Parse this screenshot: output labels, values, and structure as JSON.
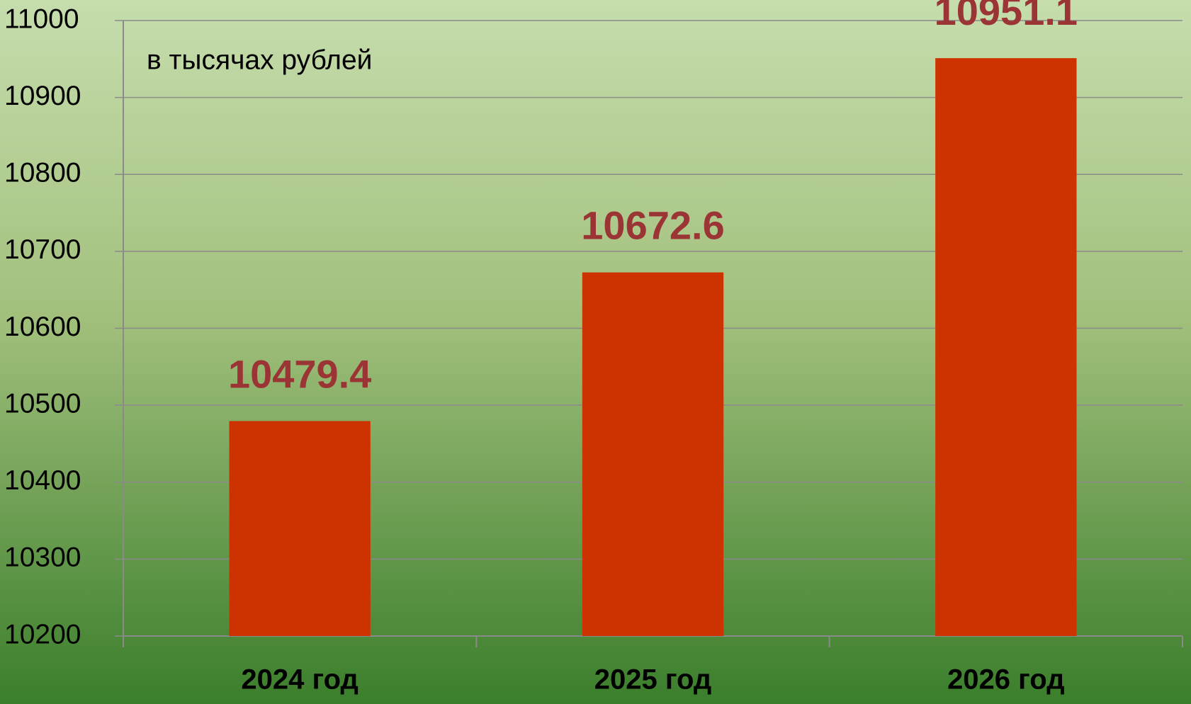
{
  "chart_data": {
    "type": "bar",
    "annotation": "в тысячах рублей",
    "categories": [
      "2024 год",
      "2025 год",
      "2026 год"
    ],
    "values": [
      10479.4,
      10672.6,
      10951.1
    ],
    "color": "#cc3300",
    "ylim": [
      10200,
      11000
    ],
    "yticks": [
      10200,
      10300,
      10400,
      10500,
      10600,
      10700,
      10800,
      10900,
      11000
    ],
    "grid": true
  }
}
